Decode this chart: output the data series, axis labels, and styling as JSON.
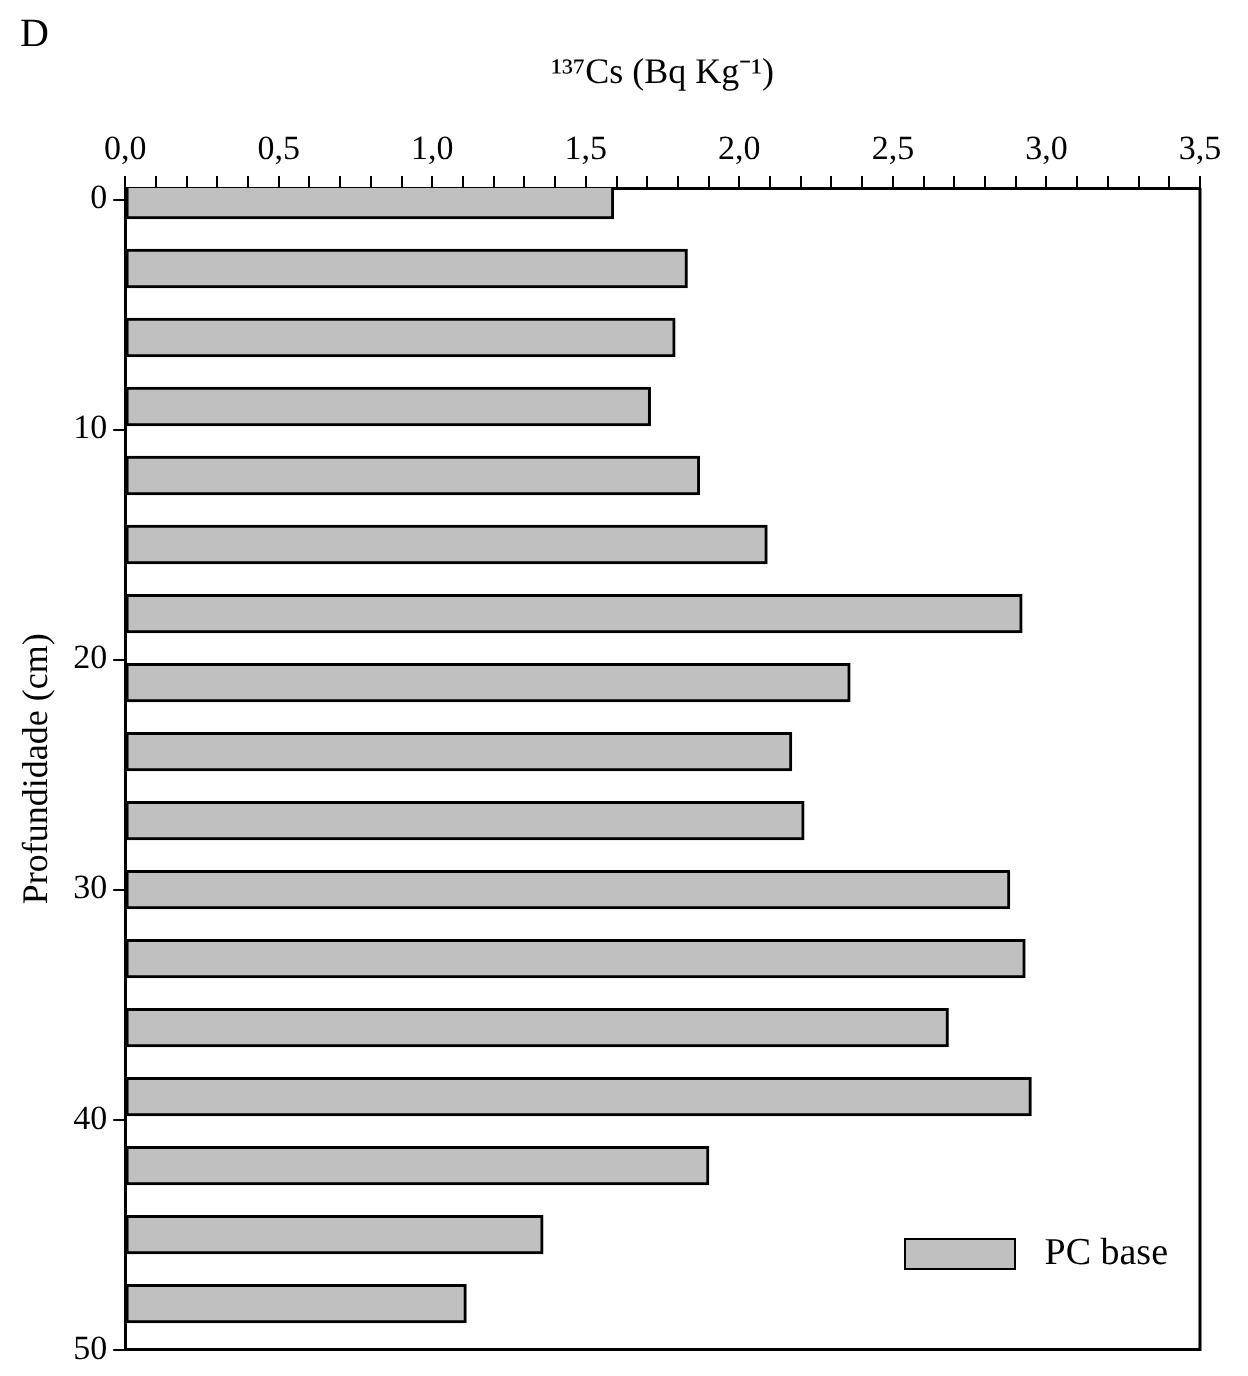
{
  "chart_data": {
    "type": "bar",
    "orientation": "horizontal",
    "title": "D",
    "xlabel": "¹³⁷Cs (Bq Kg⁻¹)",
    "ylabel": "Profundidade (cm)",
    "x": [
      0,
      3,
      6,
      9,
      12,
      15,
      18,
      21,
      24,
      27,
      30,
      33,
      36,
      39,
      42,
      45,
      48
    ],
    "series": [
      {
        "name": "PC base",
        "color": "#c0c0c0",
        "values": [
          1.59,
          1.83,
          1.79,
          1.71,
          1.87,
          2.09,
          2.92,
          2.36,
          2.17,
          2.21,
          2.88,
          2.93,
          2.68,
          2.95,
          1.9,
          1.36,
          1.11
        ]
      }
    ],
    "xlim": [
      0,
      3.5
    ],
    "xticks": [
      {
        "value": 0,
        "label": "0,0"
      },
      {
        "value": 0.1,
        "label": null
      },
      {
        "value": 0.2,
        "label": null
      },
      {
        "value": 0.3,
        "label": null
      },
      {
        "value": 0.4,
        "label": null
      },
      {
        "value": 0.5,
        "label": "0,5"
      },
      {
        "value": 0.6,
        "label": null
      },
      {
        "value": 0.7,
        "label": null
      },
      {
        "value": 0.8,
        "label": null
      },
      {
        "value": 0.9,
        "label": null
      },
      {
        "value": 1,
        "label": "1,0"
      },
      {
        "value": 1.1,
        "label": null
      },
      {
        "value": 1.2,
        "label": null
      },
      {
        "value": 1.3,
        "label": null
      },
      {
        "value": 1.4,
        "label": null
      },
      {
        "value": 1.5,
        "label": "1,5"
      },
      {
        "value": 1.6,
        "label": null
      },
      {
        "value": 1.7,
        "label": null
      },
      {
        "value": 1.8,
        "label": null
      },
      {
        "value": 1.9,
        "label": null
      },
      {
        "value": 2,
        "label": "2,0"
      },
      {
        "value": 2.1,
        "label": null
      },
      {
        "value": 2.2,
        "label": null
      },
      {
        "value": 2.3,
        "label": null
      },
      {
        "value": 2.4,
        "label": null
      },
      {
        "value": 2.5,
        "label": "2,5"
      },
      {
        "value": 2.6,
        "label": null
      },
      {
        "value": 2.7,
        "label": null
      },
      {
        "value": 2.8,
        "label": null
      },
      {
        "value": 2.9,
        "label": null
      },
      {
        "value": 3,
        "label": "3,0"
      },
      {
        "value": 3.1,
        "label": null
      },
      {
        "value": 3.2,
        "label": null
      },
      {
        "value": 3.3,
        "label": null
      },
      {
        "value": 3.4,
        "label": null
      },
      {
        "value": 3.5,
        "label": "3,5"
      }
    ],
    "ylim": [
      50,
      -0.5
    ],
    "yticks": [
      0,
      10,
      20,
      30,
      40,
      50
    ],
    "grid": false,
    "legend": "bottom right"
  }
}
